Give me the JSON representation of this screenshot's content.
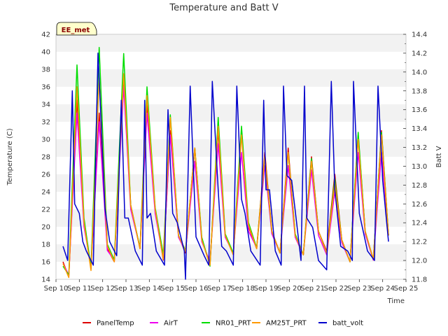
{
  "chart_data": {
    "type": "line",
    "title": "Temperature and Batt V",
    "station_label": "EE_met",
    "xlabel": "Time",
    "ylabel_left": "Temperature (C)",
    "ylabel_right": "Batt V",
    "x_tick_labels": [
      "Sep 10",
      "Sep 11",
      "Sep 12",
      "Sep 13",
      "Sep 14",
      "Sep 15",
      "Sep 16",
      "Sep 17",
      "Sep 18",
      "Sep 19",
      "Sep 20",
      "Sep 21",
      "Sep 22",
      "Sep 23",
      "Sep 24",
      "Sep 25"
    ],
    "xlim": [
      10,
      25
    ],
    "ylim_left": [
      14,
      42
    ],
    "ylim_right": [
      11.8,
      14.4
    ],
    "y_ticks_left": [
      "14",
      "16",
      "18",
      "20",
      "22",
      "24",
      "26",
      "28",
      "30",
      "32",
      "34",
      "36",
      "38",
      "40",
      "42"
    ],
    "y_ticks_right": [
      "11.8",
      "12.0",
      "12.2",
      "12.4",
      "12.6",
      "12.8",
      "13.0",
      "13.2",
      "13.4",
      "13.6",
      "13.8",
      "14.0",
      "14.2",
      "14.4"
    ],
    "grid": "horizontal alternating bands",
    "legend_position": "bottom",
    "x_unit": "day of September",
    "series": [
      {
        "name": "PanelTemp",
        "color": "#dd0000",
        "axis": "left",
        "x": [
          10.3,
          10.55,
          10.9,
          11.2,
          11.5,
          11.85,
          12.2,
          12.5,
          12.9,
          13.2,
          13.6,
          13.9,
          14.25,
          14.6,
          14.9,
          15.25,
          15.55,
          15.95,
          16.25,
          16.6,
          16.95,
          17.25,
          17.6,
          17.95,
          18.25,
          18.6,
          18.95,
          19.25,
          19.6,
          19.95,
          20.25,
          20.6,
          20.95,
          21.25,
          21.6,
          21.95,
          22.25,
          22.6,
          22.95,
          23.25,
          23.6,
          23.95,
          24.25
        ],
        "y": [
          16,
          14.3,
          34.5,
          20.5,
          15.2,
          33,
          17.5,
          16,
          37,
          22.5,
          17.5,
          34,
          22,
          16.2,
          31,
          19,
          17,
          29,
          18.5,
          15.8,
          31,
          19,
          16.8,
          31,
          20,
          17.5,
          28.5,
          19.5,
          17,
          29,
          19,
          16.8,
          28,
          19.5,
          17.2,
          26,
          18.5,
          16,
          30.5,
          19.5,
          16.2,
          31,
          19
        ]
      },
      {
        "name": "AirT",
        "color": "#ee00ee",
        "axis": "left",
        "x": [
          10.3,
          10.55,
          10.9,
          11.2,
          11.5,
          11.85,
          12.2,
          12.5,
          12.9,
          13.2,
          13.6,
          13.9,
          14.25,
          14.6,
          14.9,
          15.25,
          15.55,
          15.95,
          16.25,
          16.6,
          16.95,
          17.25,
          17.6,
          17.95,
          18.25,
          18.6,
          18.95,
          19.25,
          19.6,
          19.95,
          20.25,
          20.6,
          20.95,
          21.25,
          21.6,
          21.95,
          22.25,
          22.6,
          22.95,
          23.25,
          23.6,
          23.95,
          24.25
        ],
        "y": [
          15.8,
          14.5,
          33,
          20,
          15.5,
          32,
          17.3,
          16.2,
          36,
          22,
          17.6,
          33,
          21.5,
          16.4,
          30.5,
          18.8,
          17.2,
          27.5,
          18.3,
          16,
          29.5,
          18.8,
          17,
          28.5,
          19.5,
          17.6,
          27,
          19.2,
          17,
          27,
          18.8,
          16.8,
          26.5,
          19,
          16.8,
          24,
          18.2,
          16,
          28.5,
          19.2,
          16.2,
          28.5,
          19
        ]
      },
      {
        "name": "NR01_PRT",
        "color": "#00dd00",
        "axis": "left",
        "x": [
          10.3,
          10.55,
          10.9,
          11.2,
          11.5,
          11.85,
          12.2,
          12.5,
          12.9,
          13.2,
          13.6,
          13.9,
          14.25,
          14.6,
          14.9,
          15.25,
          15.55,
          15.95,
          16.25,
          16.6,
          16.95,
          17.25,
          17.6,
          17.95,
          18.25,
          18.6,
          18.95,
          19.25,
          19.6,
          19.95,
          20.25,
          20.6,
          20.95,
          21.25,
          21.6,
          21.95,
          22.25,
          22.6,
          22.95,
          23.25,
          23.6,
          23.95,
          24.25
        ],
        "y": [
          15.5,
          14.5,
          38.5,
          21,
          15.3,
          40.5,
          18,
          16.2,
          39.8,
          22.5,
          17.6,
          36,
          22.2,
          16.8,
          32.8,
          19,
          17.3,
          29,
          18.8,
          15.5,
          32.5,
          19.2,
          17,
          31.5,
          20.5,
          17.6,
          28,
          19.5,
          17,
          28.5,
          19.2,
          16.8,
          27.8,
          19.5,
          17,
          25.5,
          18.5,
          16,
          30.8,
          19.5,
          16.3,
          30.8,
          19
        ]
      },
      {
        "name": "AM25T_PRT",
        "color": "#ff9900",
        "axis": "left",
        "x": [
          10.3,
          10.55,
          10.9,
          11.2,
          11.5,
          11.85,
          12.2,
          12.5,
          12.9,
          13.2,
          13.6,
          13.9,
          14.25,
          14.6,
          14.9,
          15.25,
          15.55,
          15.95,
          16.25,
          16.6,
          16.95,
          17.25,
          17.6,
          17.95,
          18.25,
          18.6,
          18.95,
          19.25,
          19.6,
          19.95,
          20.25,
          20.6,
          20.95,
          21.25,
          21.6,
          21.95,
          22.25,
          22.6,
          22.95,
          23.25,
          23.6,
          23.95,
          24.25
        ],
        "y": [
          15.8,
          14.2,
          36,
          20.5,
          15,
          37,
          17.8,
          16,
          37.5,
          22.5,
          17.5,
          35,
          22,
          16.3,
          32.5,
          19,
          17.2,
          29,
          18.5,
          15.6,
          31.5,
          19,
          16.8,
          30.5,
          20.2,
          17.5,
          28,
          19.5,
          17,
          28.5,
          19,
          16.8,
          27.5,
          19.5,
          17,
          25,
          18.5,
          16,
          30,
          19.5,
          16.3,
          30.5,
          19
        ]
      },
      {
        "name": "batt_volt",
        "color": "#0000cc",
        "axis": "right",
        "x": [
          10.3,
          10.5,
          10.7,
          10.8,
          11.0,
          11.15,
          11.3,
          11.6,
          11.8,
          12.1,
          12.3,
          12.6,
          12.8,
          12.95,
          13.1,
          13.4,
          13.7,
          13.8,
          13.9,
          14.05,
          14.3,
          14.65,
          14.8,
          15.0,
          15.2,
          15.5,
          15.55,
          15.75,
          16.0,
          16.35,
          16.55,
          16.7,
          16.95,
          17.1,
          17.3,
          17.6,
          17.75,
          17.95,
          18.1,
          18.35,
          18.75,
          18.9,
          19.0,
          19.15,
          19.4,
          19.65,
          19.75,
          19.9,
          20.1,
          20.5,
          20.65,
          20.75,
          21.0,
          21.25,
          21.6,
          21.8,
          21.95,
          22.2,
          22.5,
          22.7,
          22.75,
          23.0,
          23.35,
          23.65,
          23.8,
          24.0,
          24.25
        ],
        "y": [
          12.15,
          12.0,
          13.8,
          12.6,
          12.5,
          12.2,
          12.1,
          11.95,
          14.2,
          12.55,
          12.2,
          12.05,
          13.7,
          12.45,
          12.45,
          12.1,
          11.95,
          13.7,
          12.45,
          12.5,
          12.1,
          11.95,
          13.6,
          12.5,
          12.4,
          12.1,
          11.8,
          13.85,
          12.25,
          12.05,
          11.95,
          13.9,
          12.75,
          12.15,
          12.1,
          11.95,
          13.85,
          12.65,
          12.5,
          12.1,
          11.95,
          13.7,
          12.75,
          12.75,
          12.1,
          11.95,
          13.85,
          12.9,
          12.85,
          12.0,
          13.85,
          12.45,
          12.35,
          12.0,
          11.9,
          13.9,
          12.75,
          12.15,
          12.1,
          12.0,
          13.9,
          12.5,
          12.1,
          12.0,
          13.85,
          12.85,
          12.2
        ]
      }
    ]
  }
}
